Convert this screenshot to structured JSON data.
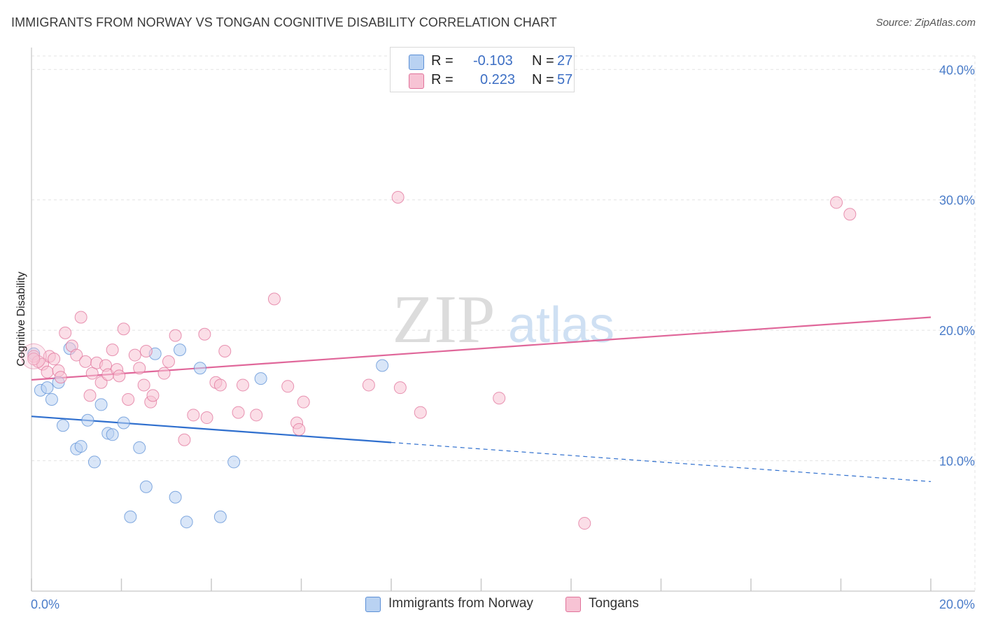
{
  "title": "IMMIGRANTS FROM NORWAY VS TONGAN COGNITIVE DISABILITY CORRELATION CHART",
  "source": "Source: ZipAtlas.com",
  "watermark": {
    "zip": "ZIP",
    "atlas": "atlas"
  },
  "legend": {
    "r_label": "R =",
    "n_label": "N =",
    "series": [
      {
        "r": "-0.103",
        "n": "27"
      },
      {
        "r": "0.223",
        "n": "57"
      }
    ]
  },
  "bottom_legend": [
    "Immigrants from Norway",
    "Tongans"
  ],
  "chart_data": {
    "type": "scatter",
    "title": "IMMIGRANTS FROM NORWAY VS TONGAN COGNITIVE DISABILITY CORRELATION CHART",
    "xlabel": "",
    "ylabel": "Cognitive Disability",
    "xlim": [
      0,
      20
    ],
    "ylim": [
      0,
      42
    ],
    "x_tick_labels": [
      "0.0%",
      "20.0%"
    ],
    "y_ticks": [
      10,
      20,
      30,
      40
    ],
    "y_tick_labels": [
      "10.0%",
      "20.0%",
      "30.0%",
      "40.0%"
    ],
    "grid": true,
    "series": [
      {
        "name": "Immigrants from Norway",
        "color": "#5b8fd6",
        "fill": "#b9d2f2",
        "r": -0.103,
        "n": 27,
        "points": [
          [
            0.05,
            18.2
          ],
          [
            0.2,
            15.4
          ],
          [
            0.35,
            15.6
          ],
          [
            0.45,
            14.7
          ],
          [
            0.6,
            16.0
          ],
          [
            0.7,
            12.7
          ],
          [
            0.85,
            18.6
          ],
          [
            1.0,
            10.9
          ],
          [
            1.1,
            11.1
          ],
          [
            1.25,
            13.1
          ],
          [
            1.4,
            9.9
          ],
          [
            1.55,
            14.3
          ],
          [
            1.7,
            12.1
          ],
          [
            1.8,
            12.0
          ],
          [
            2.05,
            12.9
          ],
          [
            2.2,
            5.7
          ],
          [
            2.4,
            11.0
          ],
          [
            2.55,
            8.0
          ],
          [
            2.75,
            18.2
          ],
          [
            3.2,
            7.2
          ],
          [
            3.3,
            18.5
          ],
          [
            3.45,
            5.3
          ],
          [
            3.75,
            17.1
          ],
          [
            4.2,
            5.7
          ],
          [
            4.5,
            9.9
          ],
          [
            5.1,
            16.3
          ],
          [
            7.8,
            17.3
          ]
        ],
        "trend": {
          "x0": 0,
          "y0": 13.4,
          "x1": 8.0,
          "y1": 11.4,
          "dash_x1": 20,
          "dash_y1": 8.4
        }
      },
      {
        "name": "Tongans",
        "color": "#e0729a",
        "fill": "#f7c3d4",
        "r": 0.223,
        "n": 57,
        "points": [
          [
            0.05,
            18.0
          ],
          [
            0.15,
            17.6
          ],
          [
            0.25,
            17.4
          ],
          [
            0.35,
            16.8
          ],
          [
            0.4,
            18.0
          ],
          [
            0.5,
            17.8
          ],
          [
            0.6,
            16.9
          ],
          [
            0.65,
            16.4
          ],
          [
            0.75,
            19.8
          ],
          [
            0.9,
            18.8
          ],
          [
            1.0,
            18.1
          ],
          [
            1.1,
            21.0
          ],
          [
            1.2,
            17.6
          ],
          [
            1.3,
            15.0
          ],
          [
            1.35,
            16.7
          ],
          [
            1.45,
            17.5
          ],
          [
            1.55,
            16.0
          ],
          [
            1.65,
            17.3
          ],
          [
            1.7,
            16.6
          ],
          [
            1.8,
            18.5
          ],
          [
            1.9,
            17.0
          ],
          [
            1.95,
            16.5
          ],
          [
            2.05,
            20.1
          ],
          [
            2.15,
            14.7
          ],
          [
            2.3,
            18.1
          ],
          [
            2.4,
            17.1
          ],
          [
            2.5,
            15.8
          ],
          [
            2.55,
            18.4
          ],
          [
            2.65,
            14.5
          ],
          [
            2.7,
            15.0
          ],
          [
            2.95,
            16.7
          ],
          [
            3.05,
            17.6
          ],
          [
            3.2,
            19.6
          ],
          [
            3.4,
            11.6
          ],
          [
            3.6,
            13.5
          ],
          [
            3.85,
            19.7
          ],
          [
            3.9,
            13.3
          ],
          [
            4.1,
            16.0
          ],
          [
            4.2,
            15.8
          ],
          [
            4.3,
            18.4
          ],
          [
            4.6,
            13.7
          ],
          [
            4.7,
            15.8
          ],
          [
            5.0,
            13.5
          ],
          [
            5.4,
            22.4
          ],
          [
            5.7,
            15.7
          ],
          [
            5.9,
            12.9
          ],
          [
            5.95,
            12.4
          ],
          [
            6.05,
            14.5
          ],
          [
            7.5,
            15.8
          ],
          [
            8.15,
            30.2
          ],
          [
            8.2,
            15.6
          ],
          [
            8.65,
            13.7
          ],
          [
            10.4,
            14.8
          ],
          [
            12.3,
            5.2
          ],
          [
            17.9,
            29.8
          ],
          [
            18.2,
            28.9
          ],
          [
            0.05,
            17.8
          ]
        ],
        "trend": {
          "x0": 0,
          "y0": 16.2,
          "x1": 20,
          "y1": 21.0
        }
      }
    ]
  }
}
